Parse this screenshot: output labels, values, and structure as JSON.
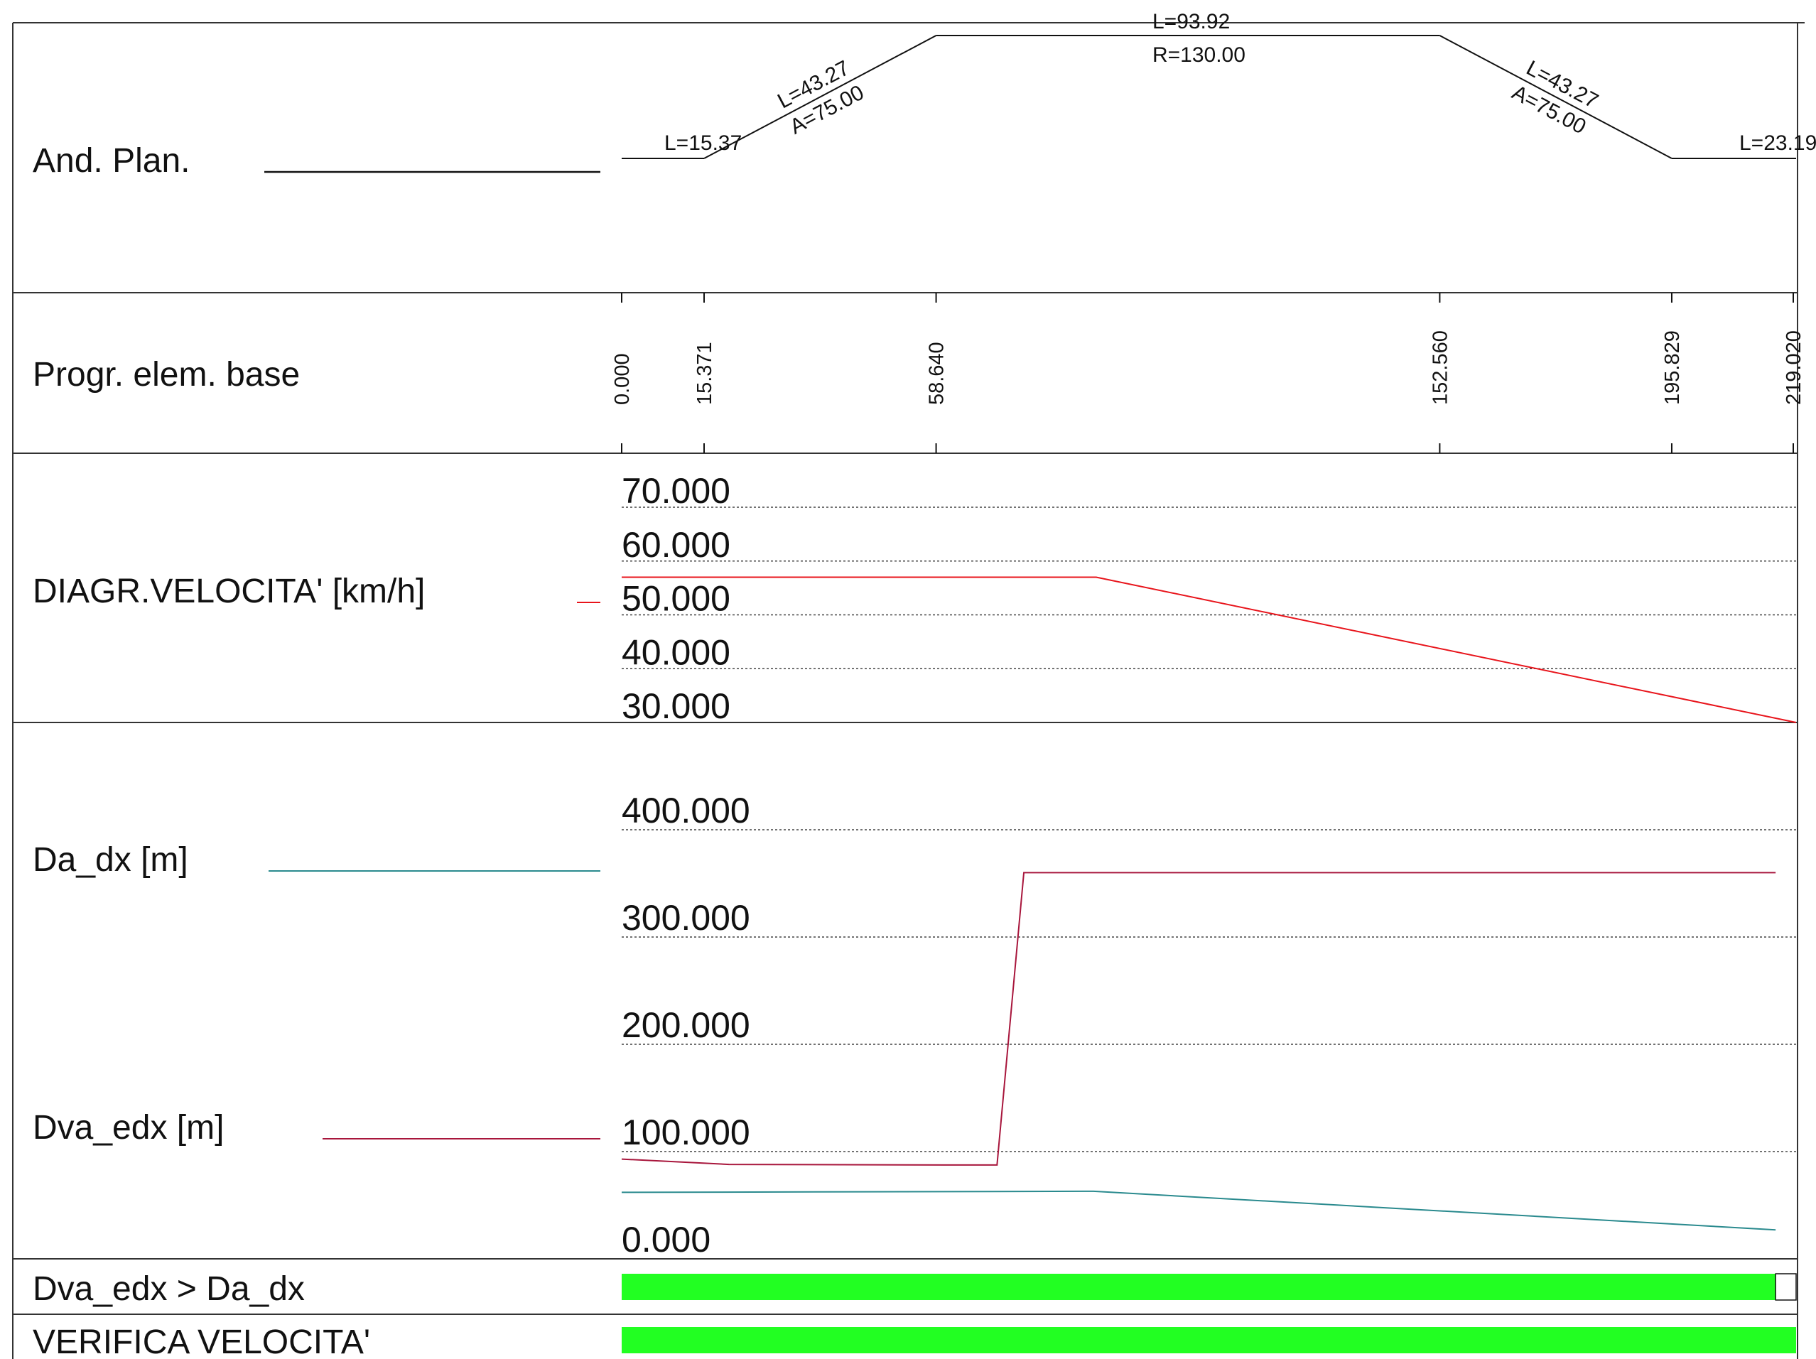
{
  "rows": {
    "plan": "And. Plan.",
    "progr": "Progr. elem. base",
    "speed": "DIAGR.VELOCITA' [km/h]",
    "da_dx": "Da_dx [m]",
    "dva_edx": "Dva_edx [m]",
    "check_dist": "Dva_edx > Da_dx",
    "check_speed": "VERIFICA VELOCITA'"
  },
  "plan_elements": [
    {
      "kind": "straight",
      "start": 0.0,
      "end": 15.371,
      "labels": [
        "L=15.37"
      ]
    },
    {
      "kind": "clothoid",
      "start": 15.371,
      "end": 58.64,
      "labels": [
        "L=43.27",
        "A=75.00"
      ]
    },
    {
      "kind": "arc",
      "start": 58.64,
      "end": 152.56,
      "labels": [
        "L=93.92",
        "R=130.00"
      ]
    },
    {
      "kind": "clothoid",
      "start": 152.56,
      "end": 195.829,
      "labels": [
        "L=43.27",
        "A=75.00"
      ]
    },
    {
      "kind": "straight",
      "start": 195.829,
      "end": 219.02,
      "labels": [
        "L=23.19"
      ]
    }
  ],
  "chart_data": [
    {
      "type": "line",
      "title": "DIAGR.VELOCITA' [km/h]",
      "x_ticks": [
        "0.000",
        "15.371",
        "58.640",
        "152.560",
        "195.829",
        "219.020"
      ],
      "xlim": [
        0,
        219.02
      ],
      "ylim": [
        30,
        70
      ],
      "y_ticks": [
        "70.000",
        "60.000",
        "50.000",
        "40.000",
        "30.000"
      ],
      "grid": true,
      "series": [
        {
          "name": "",
          "color": "#e8141b",
          "x": [
            0,
            88.5,
            219.02
          ],
          "y": [
            57.0,
            57.0,
            30.0
          ]
        }
      ]
    },
    {
      "type": "line",
      "title": "Da_dx / Dva_edx [m]",
      "xlim": [
        0,
        219.02
      ],
      "ylim": [
        0,
        400
      ],
      "y_ticks": [
        "400.000",
        "300.000",
        "200.000",
        "100.000",
        "0.000"
      ],
      "grid": true,
      "series": [
        {
          "name": "Da_dx [m]",
          "color": "#2a8a8e",
          "x": [
            0,
            45,
            88,
            215.2
          ],
          "y": [
            62,
            62.5,
            63,
            27
          ]
        },
        {
          "name": "Dva_edx [m]",
          "color": "#a8163c",
          "x": [
            0,
            20,
            60,
            70,
            75,
            215.2
          ],
          "y": [
            93,
            88,
            87.5,
            87.5,
            360,
            360
          ]
        }
      ]
    }
  ],
  "checks": {
    "dist_ok_until": 215.2,
    "speed_ok_until": 219.02,
    "ok_color": "#22ff22"
  }
}
